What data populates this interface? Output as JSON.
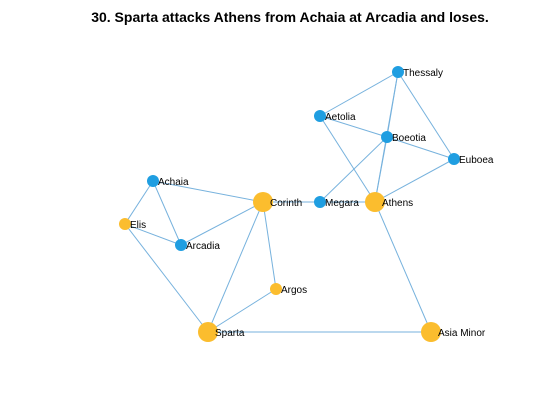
{
  "title": "30. Sparta attacks Athens from Achaia at Arcadia and loses.",
  "colors": {
    "edge": "#77b2dd",
    "node_small": "#1f9ee1",
    "node_large": "#fbbd2e"
  },
  "graph": {
    "nodes": [
      {
        "id": "thessaly",
        "label": "Thessaly",
        "color": "blue",
        "size": "small"
      },
      {
        "id": "aetolia",
        "label": "Aetolia",
        "color": "blue",
        "size": "small"
      },
      {
        "id": "boeotia",
        "label": "Boeotia",
        "color": "blue",
        "size": "small"
      },
      {
        "id": "euboea",
        "label": "Euboea",
        "color": "blue",
        "size": "small"
      },
      {
        "id": "achaia",
        "label": "Achaia",
        "color": "blue",
        "size": "small"
      },
      {
        "id": "corinth",
        "label": "Corinth",
        "color": "orange",
        "size": "large"
      },
      {
        "id": "megara",
        "label": "Megara",
        "color": "blue",
        "size": "small"
      },
      {
        "id": "athens",
        "label": "Athens",
        "color": "orange",
        "size": "large"
      },
      {
        "id": "elis",
        "label": "Elis",
        "color": "orange",
        "size": "small"
      },
      {
        "id": "arcadia",
        "label": "Arcadia",
        "color": "blue",
        "size": "small"
      },
      {
        "id": "argos",
        "label": "Argos",
        "color": "orange",
        "size": "small"
      },
      {
        "id": "sparta",
        "label": "Sparta",
        "color": "orange",
        "size": "large"
      },
      {
        "id": "asia_minor",
        "label": "Asia Minor",
        "color": "orange",
        "size": "large"
      }
    ],
    "edges": [
      [
        "thessaly",
        "aetolia"
      ],
      [
        "thessaly",
        "boeotia"
      ],
      [
        "thessaly",
        "euboea"
      ],
      [
        "thessaly",
        "athens"
      ],
      [
        "aetolia",
        "boeotia"
      ],
      [
        "aetolia",
        "athens"
      ],
      [
        "boeotia",
        "euboea"
      ],
      [
        "boeotia",
        "megara"
      ],
      [
        "boeotia",
        "athens"
      ],
      [
        "euboea",
        "athens"
      ],
      [
        "megara",
        "athens"
      ],
      [
        "corinth",
        "megara"
      ],
      [
        "achaia",
        "corinth"
      ],
      [
        "achaia",
        "elis"
      ],
      [
        "achaia",
        "arcadia"
      ],
      [
        "elis",
        "arcadia"
      ],
      [
        "elis",
        "sparta"
      ],
      [
        "arcadia",
        "corinth"
      ],
      [
        "corinth",
        "argos"
      ],
      [
        "corinth",
        "sparta"
      ],
      [
        "argos",
        "sparta"
      ],
      [
        "sparta",
        "asia_minor"
      ],
      [
        "athens",
        "asia_minor"
      ]
    ]
  }
}
